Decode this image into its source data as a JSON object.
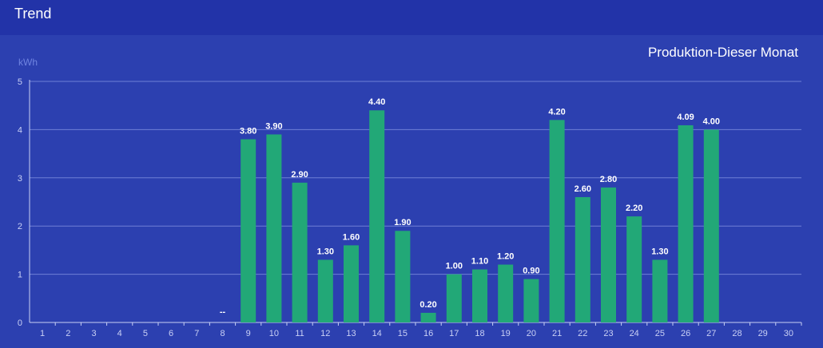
{
  "header": {
    "title": "Trend"
  },
  "colors": {
    "background": "#2c40b0",
    "header": "#2233a8",
    "bar": "#22a877",
    "grid": "#6e7fd6",
    "axis": "#c9d0f5",
    "unit_label": "#6f83e0"
  },
  "chart_data": {
    "type": "bar",
    "title": "Produktion-Dieser Monat",
    "ylabel": "kWh",
    "xlabel": "",
    "ylim": [
      0,
      5
    ],
    "yticks": [
      0,
      1,
      2,
      3,
      4,
      5
    ],
    "grid": true,
    "categories": [
      "1",
      "2",
      "3",
      "4",
      "5",
      "6",
      "7",
      "8",
      "9",
      "10",
      "11",
      "12",
      "13",
      "14",
      "15",
      "16",
      "17",
      "18",
      "19",
      "20",
      "21",
      "22",
      "23",
      "24",
      "25",
      "26",
      "27",
      "28",
      "29",
      "30"
    ],
    "values": [
      null,
      null,
      null,
      null,
      null,
      null,
      null,
      null,
      3.8,
      3.9,
      2.9,
      1.3,
      1.6,
      4.4,
      1.9,
      0.2,
      1.0,
      1.1,
      1.2,
      0.9,
      4.2,
      2.6,
      2.8,
      2.2,
      1.3,
      4.09,
      4.0,
      null,
      null,
      null
    ],
    "value_labels": [
      "",
      "",
      "",
      "",
      "",
      "",
      "",
      "--",
      "3.80",
      "3.90",
      "2.90",
      "1.30",
      "1.60",
      "4.40",
      "1.90",
      "0.20",
      "1.00",
      "1.10",
      "1.20",
      "0.90",
      "4.20",
      "2.60",
      "2.80",
      "2.20",
      "1.30",
      "4.09",
      "4.00",
      "",
      "",
      ""
    ]
  }
}
